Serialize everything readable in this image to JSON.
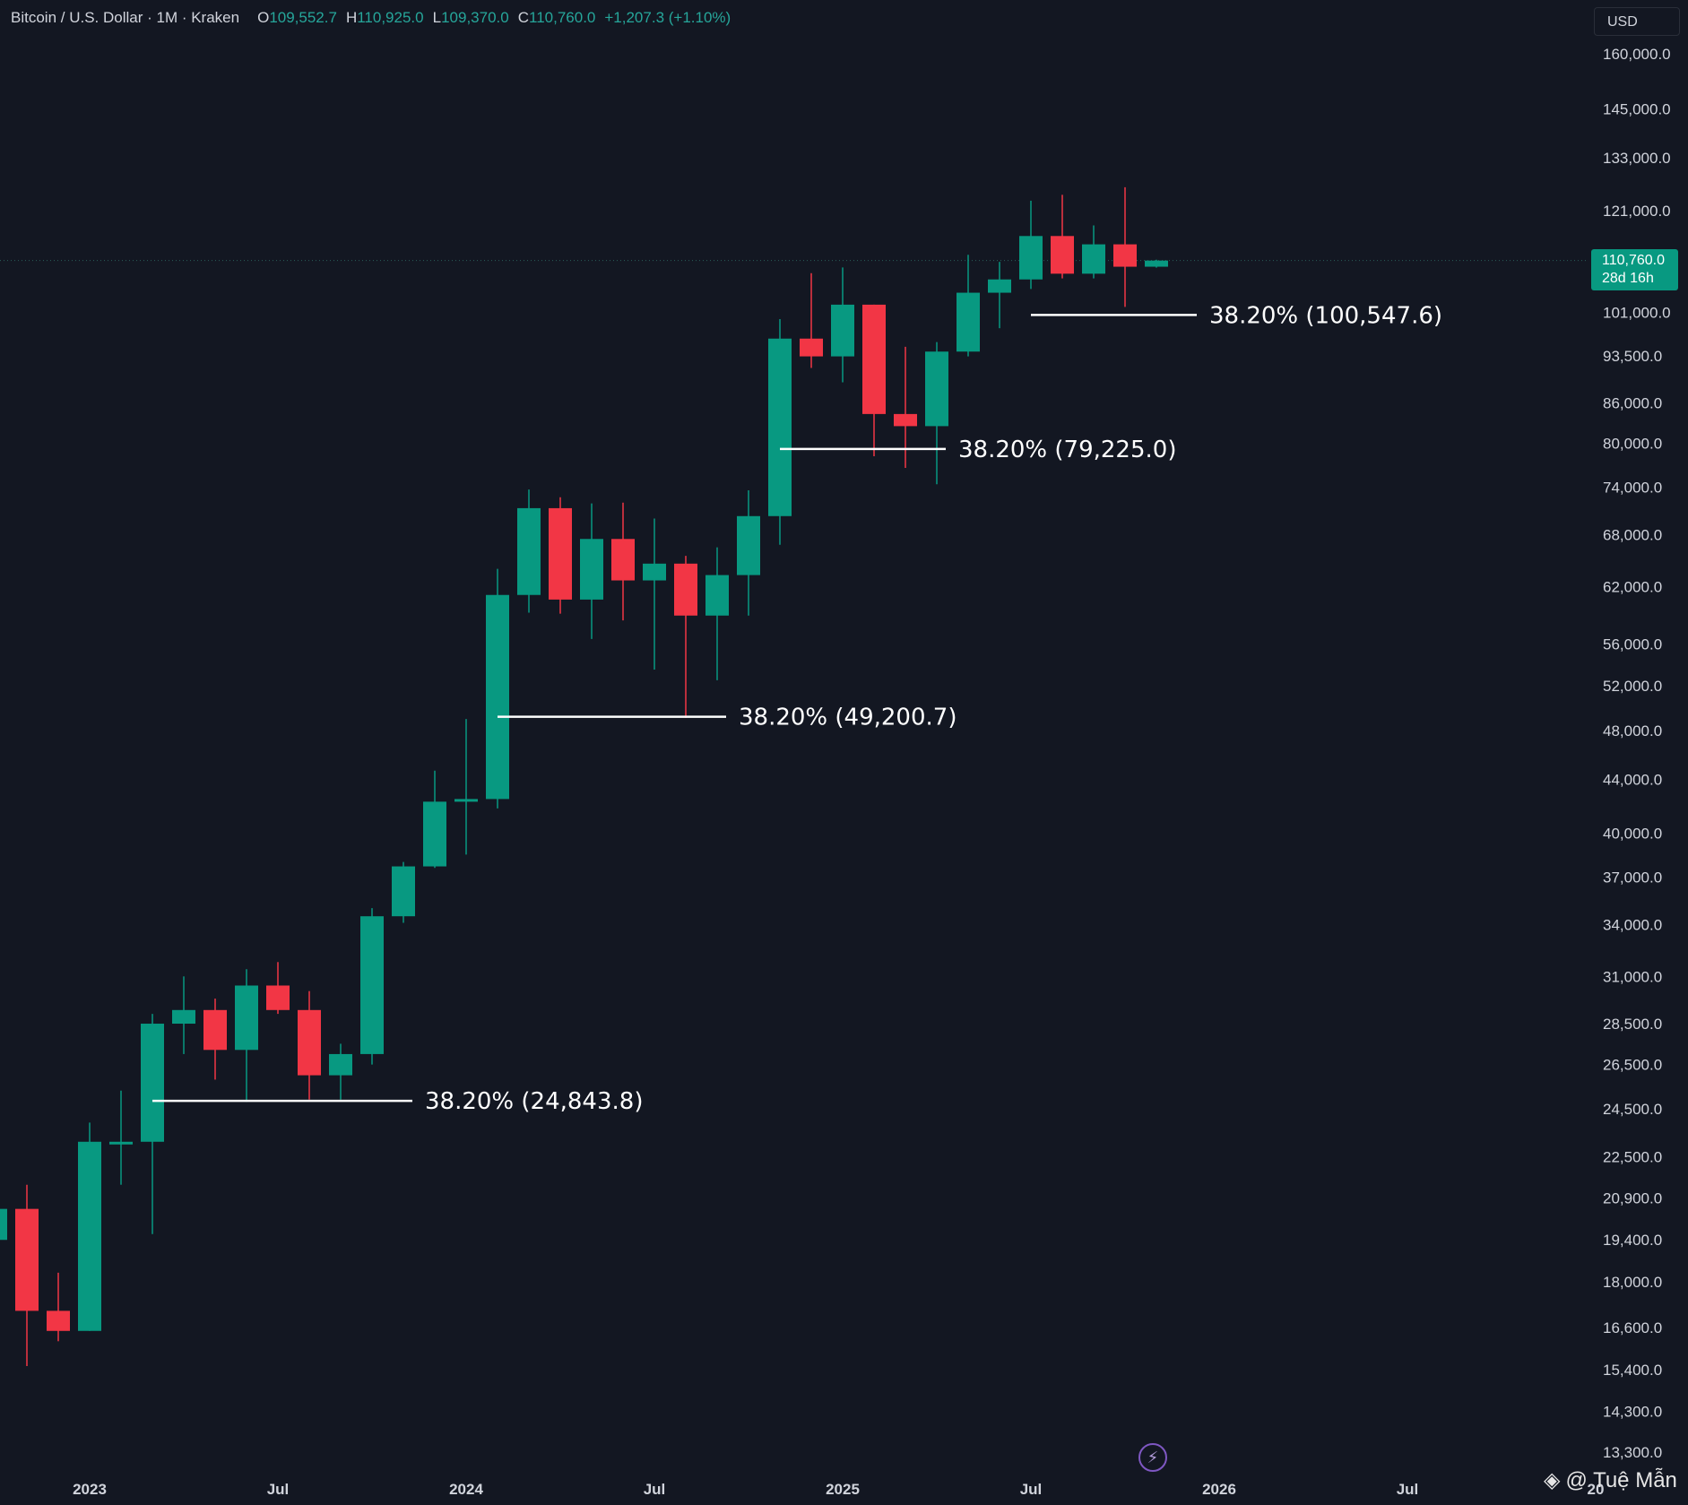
{
  "header": {
    "symbol": "Bitcoin / U.S. Dollar · 1M · Kraken",
    "open_label": "O",
    "open": "109,552.7",
    "high_label": "H",
    "high": "110,925.0",
    "low_label": "L",
    "low": "109,370.0",
    "close_label": "C",
    "close": "110,760.0",
    "change": "+1,207.3 (+1.10%)"
  },
  "currency_button": "USD",
  "last_price": {
    "price": "110,760.0",
    "countdown": "28d 16h"
  },
  "watermark": "@ Tuệ Mẫn",
  "colors": {
    "up": "#089981",
    "down": "#f23645",
    "background": "#131722",
    "axis_text": "#d1d4dc",
    "fib_line": "#ffffff"
  },
  "icons": {
    "bolt": "lightning-icon",
    "diamond": "binance-diamond-icon"
  },
  "chart_data": {
    "type": "candlestick",
    "scale": "log",
    "interval": "1M",
    "ylim": [
      12800,
      170000
    ],
    "y_ticks": [
      "160,000.0",
      "145,000.0",
      "133,000.0",
      "121,000.0",
      "101,000.0",
      "93,500.0",
      "86,000.0",
      "80,000.0",
      "74,000.0",
      "68,000.0",
      "62,000.0",
      "56,000.0",
      "52,000.0",
      "48,000.0",
      "44,000.0",
      "40,000.0",
      "37,000.0",
      "34,000.0",
      "31,000.0",
      "28,500.0",
      "26,500.0",
      "24,500.0",
      "22,500.0",
      "20,900.0",
      "19,400.0",
      "18,000.0",
      "16,600.0",
      "15,400.0",
      "14,300.0",
      "13,300.0"
    ],
    "y_tick_values": [
      160000,
      145000,
      133000,
      121000,
      101000,
      93500,
      86000,
      80000,
      74000,
      68000,
      62000,
      56000,
      52000,
      48000,
      44000,
      40000,
      37000,
      34000,
      31000,
      28500,
      26500,
      24500,
      22500,
      20900,
      19400,
      18000,
      16600,
      15400,
      14300,
      13300
    ],
    "x_ticks": [
      "2023",
      "Jul",
      "2024",
      "Jul",
      "2025",
      "Jul",
      "2026",
      "Jul",
      "20"
    ],
    "x_tick_dates": [
      "2023-01",
      "2023-07",
      "2024-01",
      "2024-07",
      "2025-01",
      "2025-07",
      "2026-01",
      "2026-07",
      "2027-01"
    ],
    "candles": [
      {
        "t": "2022-10",
        "o": 19400,
        "h": 20900,
        "l": 18900,
        "c": 20500
      },
      {
        "t": "2022-11",
        "o": 20500,
        "h": 21400,
        "l": 15500,
        "c": 17100
      },
      {
        "t": "2022-12",
        "o": 17100,
        "h": 18300,
        "l": 16200,
        "c": 16500
      },
      {
        "t": "2023-01",
        "o": 16500,
        "h": 23900,
        "l": 16500,
        "c": 23100
      },
      {
        "t": "2023-02",
        "o": 23100,
        "h": 25300,
        "l": 21400,
        "c": 23100
      },
      {
        "t": "2023-03",
        "o": 23100,
        "h": 29000,
        "l": 19600,
        "c": 28500
      },
      {
        "t": "2023-04",
        "o": 28500,
        "h": 31000,
        "l": 27000,
        "c": 29200
      },
      {
        "t": "2023-05",
        "o": 29200,
        "h": 29800,
        "l": 25800,
        "c": 27200
      },
      {
        "t": "2023-06",
        "o": 27200,
        "h": 31400,
        "l": 24800,
        "c": 30500
      },
      {
        "t": "2023-07",
        "o": 30500,
        "h": 31800,
        "l": 29000,
        "c": 29200
      },
      {
        "t": "2023-08",
        "o": 29200,
        "h": 30200,
        "l": 24900,
        "c": 26000
      },
      {
        "t": "2023-09",
        "o": 26000,
        "h": 27500,
        "l": 24900,
        "c": 27000
      },
      {
        "t": "2023-10",
        "o": 27000,
        "h": 35000,
        "l": 26500,
        "c": 34500
      },
      {
        "t": "2023-11",
        "o": 34500,
        "h": 38000,
        "l": 34100,
        "c": 37700
      },
      {
        "t": "2023-12",
        "o": 37700,
        "h": 44700,
        "l": 37600,
        "c": 42300
      },
      {
        "t": "2024-01",
        "o": 42300,
        "h": 49000,
        "l": 38500,
        "c": 42500
      },
      {
        "t": "2024-02",
        "o": 42500,
        "h": 64000,
        "l": 41800,
        "c": 61100
      },
      {
        "t": "2024-03",
        "o": 61100,
        "h": 73700,
        "l": 59200,
        "c": 71300
      },
      {
        "t": "2024-04",
        "o": 71300,
        "h": 72700,
        "l": 59100,
        "c": 60600
      },
      {
        "t": "2024-05",
        "o": 60600,
        "h": 71900,
        "l": 56500,
        "c": 67500
      },
      {
        "t": "2024-06",
        "o": 67500,
        "h": 72000,
        "l": 58400,
        "c": 62700
      },
      {
        "t": "2024-07",
        "o": 62700,
        "h": 70000,
        "l": 53500,
        "c": 64600
      },
      {
        "t": "2024-08",
        "o": 64600,
        "h": 65500,
        "l": 49100,
        "c": 58900
      },
      {
        "t": "2024-09",
        "o": 58900,
        "h": 66500,
        "l": 52500,
        "c": 63300
      },
      {
        "t": "2024-10",
        "o": 63300,
        "h": 73600,
        "l": 58900,
        "c": 70300
      },
      {
        "t": "2024-11",
        "o": 70300,
        "h": 99800,
        "l": 66800,
        "c": 96400
      },
      {
        "t": "2024-12",
        "o": 96400,
        "h": 108300,
        "l": 91500,
        "c": 93400
      },
      {
        "t": "2025-01",
        "o": 93400,
        "h": 109400,
        "l": 89200,
        "c": 102400
      },
      {
        "t": "2025-02",
        "o": 102400,
        "h": 102400,
        "l": 78200,
        "c": 84300
      },
      {
        "t": "2025-03",
        "o": 84300,
        "h": 95000,
        "l": 76600,
        "c": 82500
      },
      {
        "t": "2025-04",
        "o": 82500,
        "h": 95800,
        "l": 74400,
        "c": 94200
      },
      {
        "t": "2025-05",
        "o": 94200,
        "h": 111900,
        "l": 93400,
        "c": 104600
      },
      {
        "t": "2025-06",
        "o": 104600,
        "h": 110500,
        "l": 98200,
        "c": 107100
      },
      {
        "t": "2025-07",
        "o": 107100,
        "h": 123200,
        "l": 105300,
        "c": 115700
      },
      {
        "t": "2025-08",
        "o": 115700,
        "h": 124500,
        "l": 107300,
        "c": 108200
      },
      {
        "t": "2025-09",
        "o": 108200,
        "h": 117900,
        "l": 107300,
        "c": 114000
      },
      {
        "t": "2025-10",
        "o": 114000,
        "h": 126200,
        "l": 102000,
        "c": 109550
      },
      {
        "t": "2025-11",
        "o": 109552.7,
        "h": 110925,
        "l": 109370,
        "c": 110760
      }
    ],
    "fib_levels": [
      {
        "label": "38.20% (24,843.8)",
        "value": 24843.8,
        "from": "2023-03",
        "to": "2023-11"
      },
      {
        "label": "38.20% (49,200.7)",
        "value": 49200.7,
        "from": "2024-02",
        "to": "2024-09"
      },
      {
        "label": "38.20% (79,225.0)",
        "value": 79225.0,
        "from": "2024-11",
        "to": "2025-04"
      },
      {
        "label": "38.20% (100,547.6)",
        "value": 100547.6,
        "from": "2025-07",
        "to": "2025-12"
      }
    ],
    "last_price_value": 110760.0
  }
}
